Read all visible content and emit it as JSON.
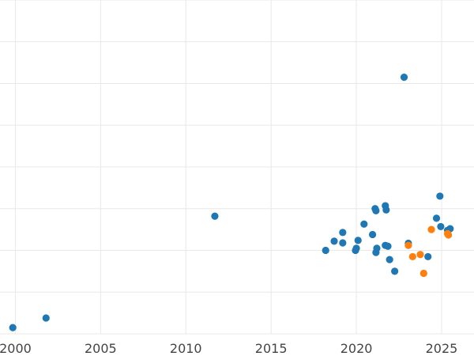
{
  "chart_data": {
    "type": "scatter",
    "title": "",
    "xlabel": "",
    "ylabel": "",
    "x_ticks": [
      "2000",
      "2005",
      "2010",
      "2015",
      "2020",
      "2025"
    ],
    "xlim": [
      1999.1,
      2026.9
    ],
    "ylim": [
      0,
      8
    ],
    "grid": true,
    "series": [
      {
        "color": "#1f77b4",
        "points": [
          {
            "x": 1999.85,
            "y": 0.15
          },
          {
            "x": 2001.8,
            "y": 0.38
          },
          {
            "x": 2011.7,
            "y": 2.82
          },
          {
            "x": 2018.2,
            "y": 2.0
          },
          {
            "x": 2018.7,
            "y": 2.22
          },
          {
            "x": 2019.2,
            "y": 2.43
          },
          {
            "x": 2019.2,
            "y": 2.18
          },
          {
            "x": 2019.95,
            "y": 2.0
          },
          {
            "x": 2020.0,
            "y": 2.05
          },
          {
            "x": 2020.1,
            "y": 2.24
          },
          {
            "x": 2020.45,
            "y": 2.63
          },
          {
            "x": 2020.95,
            "y": 2.38
          },
          {
            "x": 2021.1,
            "y": 3.0
          },
          {
            "x": 2021.15,
            "y": 2.95
          },
          {
            "x": 2021.15,
            "y": 1.95
          },
          {
            "x": 2021.2,
            "y": 2.05
          },
          {
            "x": 2021.7,
            "y": 3.07
          },
          {
            "x": 2021.75,
            "y": 2.97
          },
          {
            "x": 2021.7,
            "y": 2.12
          },
          {
            "x": 2021.85,
            "y": 2.1
          },
          {
            "x": 2021.95,
            "y": 1.78
          },
          {
            "x": 2022.25,
            "y": 1.5
          },
          {
            "x": 2022.8,
            "y": 6.15
          },
          {
            "x": 2023.05,
            "y": 2.17
          },
          {
            "x": 2024.2,
            "y": 1.85
          },
          {
            "x": 2024.7,
            "y": 2.77
          },
          {
            "x": 2024.9,
            "y": 3.3
          },
          {
            "x": 2024.95,
            "y": 2.57
          },
          {
            "x": 2025.35,
            "y": 2.48
          },
          {
            "x": 2025.5,
            "y": 2.52
          }
        ]
      },
      {
        "color": "#ff7f0e",
        "points": [
          {
            "x": 2023.05,
            "y": 2.12
          },
          {
            "x": 2023.3,
            "y": 1.85
          },
          {
            "x": 2023.75,
            "y": 1.9
          },
          {
            "x": 2023.95,
            "y": 1.45
          },
          {
            "x": 2024.4,
            "y": 2.5
          },
          {
            "x": 2025.35,
            "y": 2.4
          },
          {
            "x": 2025.4,
            "y": 2.37
          }
        ]
      }
    ]
  }
}
